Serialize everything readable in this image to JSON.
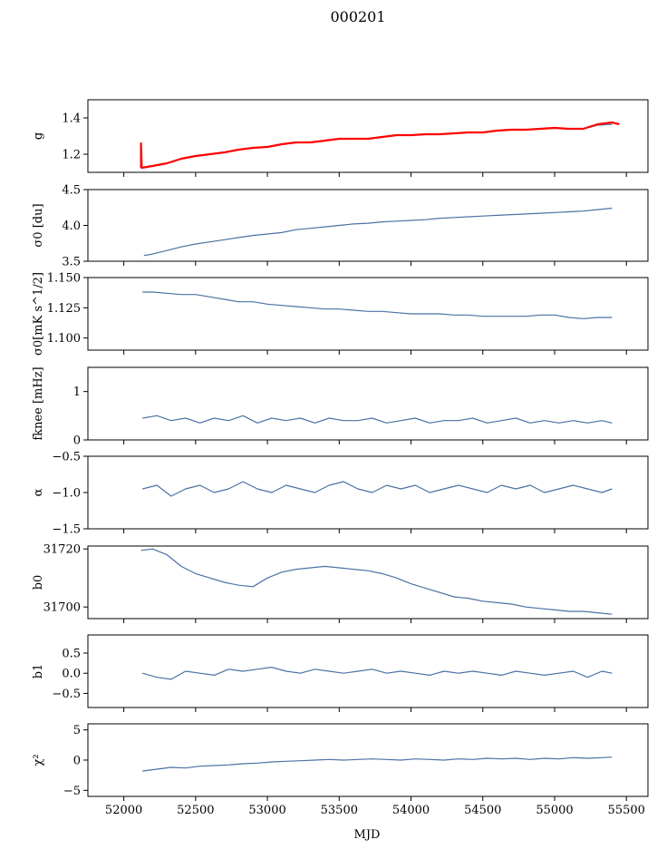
{
  "figure": {
    "title": "000201",
    "xlabel": "MJD"
  },
  "colors": {
    "series": "#4c72a4",
    "fit": "#ff0000",
    "axis": "#000000"
  },
  "chart_data": [
    {
      "type": "line",
      "ylabel": "g",
      "ylim": [
        1.1,
        1.5
      ],
      "yticks": [
        1.2,
        1.4
      ],
      "yticklabels": [
        "1.2",
        "1.4"
      ],
      "xlim": [
        51750,
        55650
      ],
      "series": [
        {
          "color": "#4c72a4",
          "x": [
            52120,
            52200,
            52300,
            52400,
            52500,
            52600,
            52700,
            52800,
            52900,
            53000,
            53100,
            53200,
            53300,
            53400,
            53500,
            53600,
            53700,
            53800,
            53900,
            54000,
            54100,
            54200,
            54300,
            54400,
            54500,
            54600,
            54700,
            54800,
            54900,
            55000,
            55100,
            55200,
            55300,
            55400
          ],
          "y": [
            1.125,
            1.135,
            1.15,
            1.175,
            1.19,
            1.2,
            1.21,
            1.225,
            1.235,
            1.24,
            1.255,
            1.265,
            1.265,
            1.275,
            1.285,
            1.285,
            1.285,
            1.295,
            1.305,
            1.305,
            1.31,
            1.31,
            1.315,
            1.32,
            1.32,
            1.33,
            1.335,
            1.335,
            1.34,
            1.345,
            1.34,
            1.34,
            1.36,
            1.365
          ]
        },
        {
          "color": "#ff0000",
          "x": [
            52120,
            52120,
            52125,
            52200,
            52300,
            52400,
            52500,
            52600,
            52700,
            52800,
            52900,
            53000,
            53100,
            53200,
            53300,
            53400,
            53500,
            53600,
            53700,
            53800,
            53900,
            54000,
            54100,
            54200,
            54300,
            54400,
            54500,
            54600,
            54700,
            54800,
            54900,
            55000,
            55100,
            55200,
            55300,
            55400,
            55450
          ],
          "y": [
            1.125,
            1.26,
            1.125,
            1.135,
            1.15,
            1.175,
            1.19,
            1.2,
            1.21,
            1.225,
            1.235,
            1.24,
            1.255,
            1.265,
            1.265,
            1.275,
            1.285,
            1.285,
            1.285,
            1.295,
            1.305,
            1.305,
            1.31,
            1.31,
            1.315,
            1.32,
            1.32,
            1.33,
            1.335,
            1.335,
            1.34,
            1.345,
            1.34,
            1.34,
            1.365,
            1.375,
            1.365
          ]
        }
      ]
    },
    {
      "type": "line",
      "ylabel": "σ0 [du]",
      "ylim": [
        3.5,
        4.5
      ],
      "yticks": [
        3.5,
        4.0,
        4.5
      ],
      "yticklabels": [
        "3.5",
        "4.0",
        "4.5"
      ],
      "xlim": [
        51750,
        55650
      ],
      "series": [
        {
          "color": "#4c72a4",
          "x": [
            52140,
            52200,
            52300,
            52400,
            52500,
            52600,
            52700,
            52800,
            52900,
            53000,
            53100,
            53200,
            53300,
            53400,
            53500,
            53600,
            53700,
            53800,
            53900,
            54000,
            54100,
            54200,
            54300,
            54400,
            54500,
            54600,
            54700,
            54800,
            54900,
            55000,
            55100,
            55200,
            55300,
            55400
          ],
          "y": [
            3.58,
            3.6,
            3.65,
            3.7,
            3.74,
            3.77,
            3.8,
            3.83,
            3.86,
            3.88,
            3.9,
            3.94,
            3.96,
            3.98,
            4.0,
            4.02,
            4.03,
            4.05,
            4.06,
            4.07,
            4.08,
            4.1,
            4.11,
            4.12,
            4.13,
            4.14,
            4.15,
            4.16,
            4.17,
            4.18,
            4.19,
            4.2,
            4.22,
            4.24
          ]
        }
      ]
    },
    {
      "type": "line",
      "ylabel": "σ0[mK s^1/2]",
      "ylim": [
        1.09,
        1.15
      ],
      "yticks": [
        1.1,
        1.125,
        1.15
      ],
      "yticklabels": [
        "1.100",
        "1.125",
        "1.150"
      ],
      "xlim": [
        51750,
        55650
      ],
      "series": [
        {
          "color": "#4c72a4",
          "x": [
            52130,
            52200,
            52300,
            52400,
            52500,
            52600,
            52700,
            52800,
            52900,
            53000,
            53100,
            53200,
            53300,
            53400,
            53500,
            53600,
            53700,
            53800,
            53900,
            54000,
            54100,
            54200,
            54300,
            54400,
            54500,
            54600,
            54700,
            54800,
            54900,
            55000,
            55100,
            55200,
            55300,
            55400
          ],
          "y": [
            1.138,
            1.138,
            1.137,
            1.136,
            1.136,
            1.134,
            1.132,
            1.13,
            1.13,
            1.128,
            1.127,
            1.126,
            1.125,
            1.124,
            1.124,
            1.123,
            1.122,
            1.122,
            1.121,
            1.12,
            1.12,
            1.12,
            1.119,
            1.119,
            1.118,
            1.118,
            1.118,
            1.118,
            1.119,
            1.119,
            1.117,
            1.116,
            1.117,
            1.117
          ]
        }
      ]
    },
    {
      "type": "line",
      "ylabel": "fknee [mHz]",
      "ylim": [
        0,
        1.5
      ],
      "yticks": [
        0,
        1
      ],
      "yticklabels": [
        "0",
        "1"
      ],
      "xlim": [
        51750,
        55650
      ],
      "series": [
        {
          "color": "#4c72a4",
          "x": [
            52130,
            52230,
            52330,
            52430,
            52530,
            52630,
            52730,
            52830,
            52930,
            53030,
            53130,
            53230,
            53330,
            53430,
            53530,
            53630,
            53730,
            53830,
            53930,
            54030,
            54130,
            54230,
            54330,
            54430,
            54530,
            54630,
            54730,
            54830,
            54930,
            55030,
            55130,
            55230,
            55330,
            55400
          ],
          "y": [
            0.45,
            0.5,
            0.4,
            0.45,
            0.35,
            0.45,
            0.4,
            0.5,
            0.35,
            0.45,
            0.4,
            0.45,
            0.35,
            0.45,
            0.4,
            0.4,
            0.45,
            0.35,
            0.4,
            0.45,
            0.35,
            0.4,
            0.4,
            0.45,
            0.35,
            0.4,
            0.45,
            0.35,
            0.4,
            0.35,
            0.4,
            0.35,
            0.4,
            0.35
          ]
        }
      ]
    },
    {
      "type": "line",
      "ylabel": "α",
      "ylim": [
        -1.5,
        -0.5
      ],
      "yticks": [
        -1.5,
        -1.0,
        -0.5
      ],
      "yticklabels": [
        "−1.5",
        "−1.0",
        "−0.5"
      ],
      "xlim": [
        51750,
        55650
      ],
      "series": [
        {
          "color": "#4c72a4",
          "x": [
            52130,
            52230,
            52330,
            52430,
            52530,
            52630,
            52730,
            52830,
            52930,
            53030,
            53130,
            53230,
            53330,
            53430,
            53530,
            53630,
            53730,
            53830,
            53930,
            54030,
            54130,
            54230,
            54330,
            54430,
            54530,
            54630,
            54730,
            54830,
            54930,
            55030,
            55130,
            55230,
            55330,
            55400
          ],
          "y": [
            -0.95,
            -0.9,
            -1.05,
            -0.95,
            -0.9,
            -1.0,
            -0.95,
            -0.85,
            -0.95,
            -1.0,
            -0.9,
            -0.95,
            -1.0,
            -0.9,
            -0.85,
            -0.95,
            -1.0,
            -0.9,
            -0.95,
            -0.9,
            -1.0,
            -0.95,
            -0.9,
            -0.95,
            -1.0,
            -0.9,
            -0.95,
            -0.9,
            -1.0,
            -0.95,
            -0.9,
            -0.95,
            -1.0,
            -0.95
          ]
        }
      ]
    },
    {
      "type": "line",
      "ylabel": "b0",
      "ylim": [
        31696,
        31721
      ],
      "yticks": [
        31700,
        31720
      ],
      "yticklabels": [
        "31700",
        "31720"
      ],
      "xlim": [
        51750,
        55650
      ],
      "series": [
        {
          "color": "#4c72a4",
          "x": [
            52120,
            52200,
            52300,
            52400,
            52500,
            52600,
            52700,
            52800,
            52900,
            53000,
            53100,
            53200,
            53300,
            53400,
            53500,
            53600,
            53700,
            53800,
            53900,
            54000,
            54100,
            54200,
            54300,
            54400,
            54500,
            54600,
            54700,
            54800,
            54900,
            55000,
            55100,
            55200,
            55300,
            55400
          ],
          "y": [
            31719.5,
            31720,
            31718,
            31714,
            31711.5,
            31710,
            31708.5,
            31707.5,
            31707,
            31710,
            31712,
            31713,
            31713.5,
            31714,
            31713.5,
            31713,
            31712.5,
            31711.5,
            31710,
            31708,
            31706.5,
            31705,
            31703.5,
            31703,
            31702,
            31701.5,
            31701,
            31700,
            31699.5,
            31699,
            31698.5,
            31698.5,
            31698,
            31697.5
          ]
        }
      ]
    },
    {
      "type": "line",
      "ylabel": "b1",
      "ylim": [
        -0.85,
        0.95
      ],
      "yticks": [
        -0.5,
        0.0,
        0.5
      ],
      "yticklabels": [
        "−0.5",
        "0.0",
        "0.5"
      ],
      "xlim": [
        51750,
        55650
      ],
      "series": [
        {
          "color": "#4c72a4",
          "x": [
            52130,
            52230,
            52330,
            52430,
            52530,
            52630,
            52730,
            52830,
            52930,
            53030,
            53130,
            53230,
            53330,
            53430,
            53530,
            53630,
            53730,
            53830,
            53930,
            54030,
            54130,
            54230,
            54330,
            54430,
            54530,
            54630,
            54730,
            54830,
            54930,
            55030,
            55130,
            55230,
            55330,
            55400
          ],
          "y": [
            0.0,
            -0.1,
            -0.15,
            0.05,
            0.0,
            -0.05,
            0.1,
            0.05,
            0.1,
            0.15,
            0.05,
            0.0,
            0.1,
            0.05,
            0.0,
            0.05,
            0.1,
            0.0,
            0.05,
            0.0,
            -0.05,
            0.05,
            0.0,
            0.05,
            0.0,
            -0.05,
            0.05,
            0.0,
            -0.05,
            0.0,
            0.05,
            -0.1,
            0.05,
            0.0
          ]
        }
      ]
    },
    {
      "type": "line",
      "ylabel": "χ²",
      "ylim": [
        -6,
        6
      ],
      "yticks": [
        -5,
        0,
        5
      ],
      "yticklabels": [
        "−5",
        "0",
        "5"
      ],
      "xlim": [
        51750,
        55650
      ],
      "xticks": [
        52000,
        52500,
        53000,
        53500,
        54000,
        54500,
        55000,
        55500
      ],
      "xticklabels": [
        "52000",
        "52500",
        "53000",
        "53500",
        "54000",
        "54500",
        "55000",
        "55500"
      ],
      "series": [
        {
          "color": "#4c72a4",
          "x": [
            52130,
            52230,
            52330,
            52430,
            52530,
            52630,
            52730,
            52830,
            52930,
            53030,
            53130,
            53230,
            53330,
            53430,
            53530,
            53630,
            53730,
            53830,
            53930,
            54030,
            54130,
            54230,
            54330,
            54430,
            54530,
            54630,
            54730,
            54830,
            54930,
            55030,
            55130,
            55230,
            55330,
            55400
          ],
          "y": [
            -1.8,
            -1.5,
            -1.2,
            -1.3,
            -1.0,
            -0.9,
            -0.8,
            -0.6,
            -0.5,
            -0.3,
            -0.2,
            -0.1,
            0.0,
            0.1,
            0.0,
            0.1,
            0.2,
            0.1,
            0.0,
            0.2,
            0.1,
            0.0,
            0.2,
            0.1,
            0.3,
            0.2,
            0.3,
            0.1,
            0.3,
            0.2,
            0.4,
            0.3,
            0.4,
            0.5
          ]
        }
      ]
    }
  ]
}
